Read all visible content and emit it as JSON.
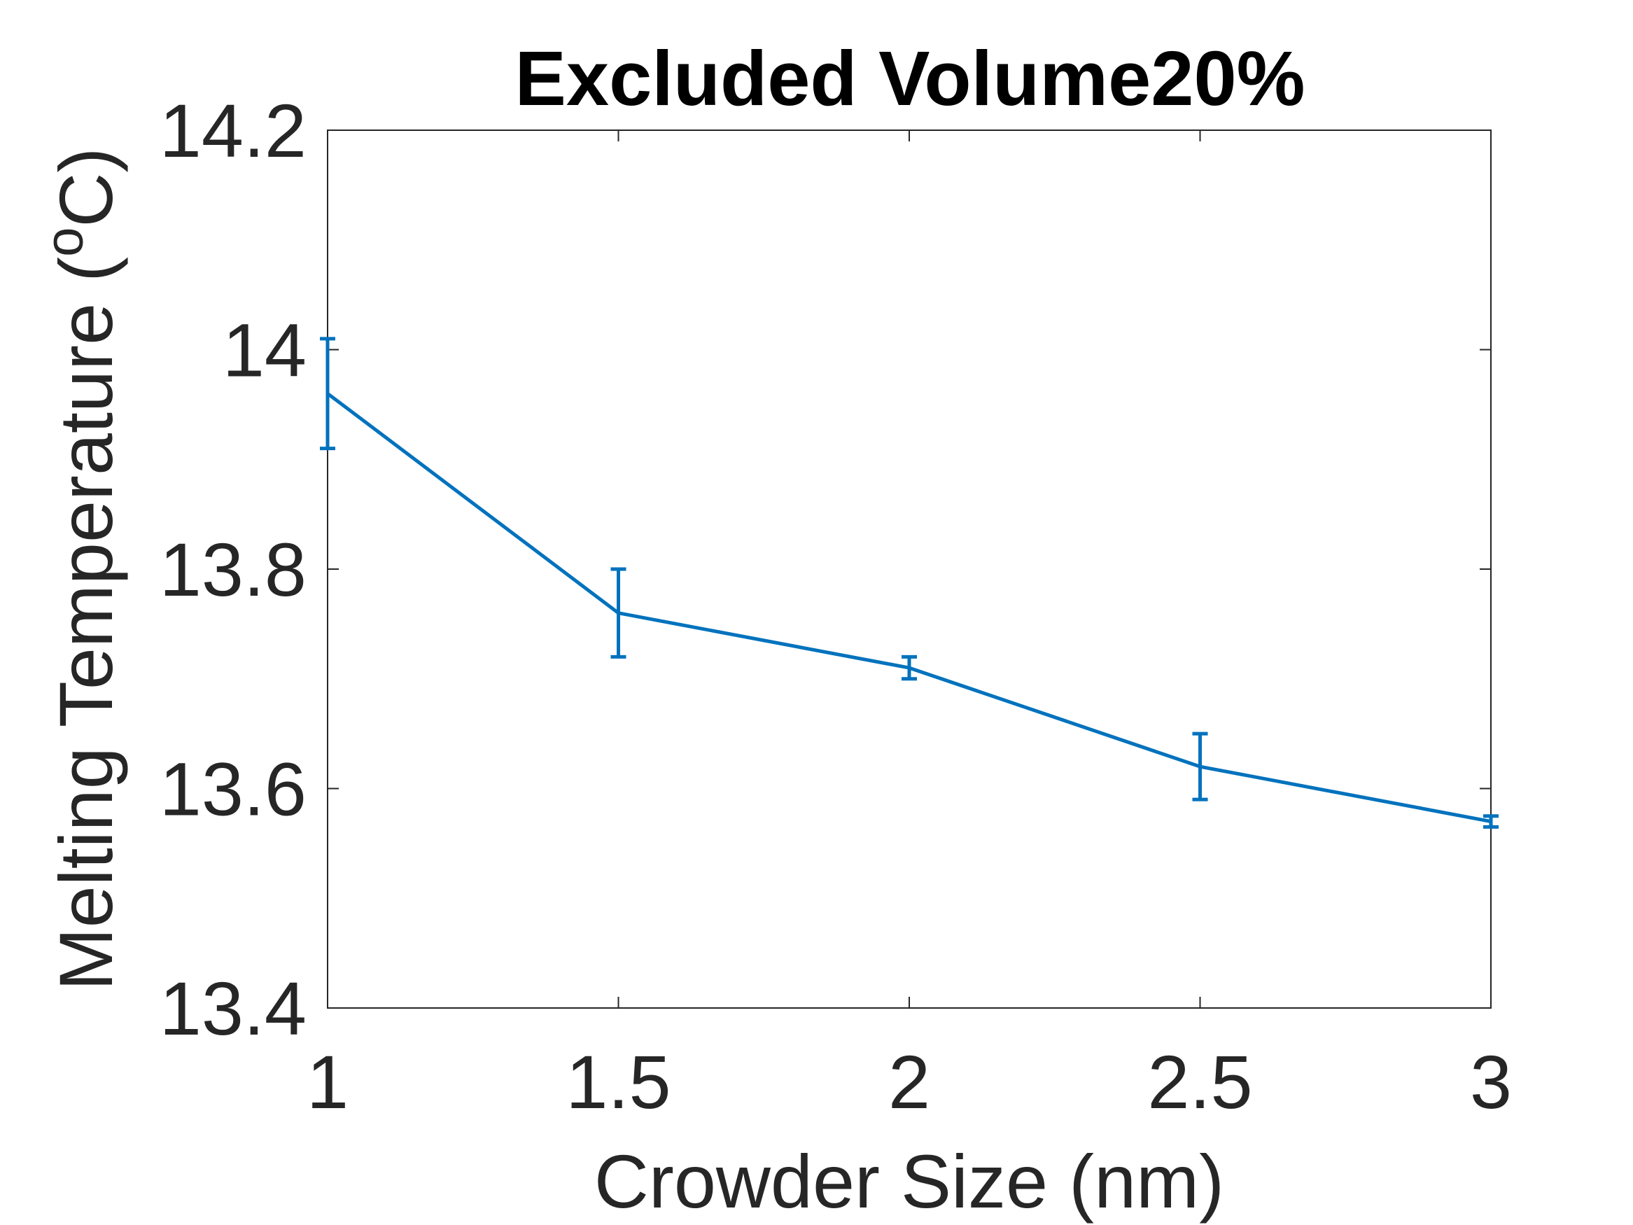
{
  "chart_data": {
    "type": "line",
    "title": "Excluded Volume20%",
    "xlabel": "Crowder Size (nm)",
    "ylabel": {
      "prefix": "Melting Temperature (",
      "superscript": "o",
      "suffix": "C)"
    },
    "xlim": [
      1,
      3
    ],
    "ylim": [
      13.4,
      14.2
    ],
    "xticks": [
      1,
      1.5,
      2,
      2.5,
      3
    ],
    "xtick_labels": [
      "1",
      "1.5",
      "2",
      "2.5",
      "3"
    ],
    "yticks": [
      13.4,
      13.6,
      13.8,
      14,
      14.2
    ],
    "ytick_labels": [
      "13.4",
      "13.6",
      "13.8",
      "14",
      "14.2"
    ],
    "grid": false,
    "series": [
      {
        "color": "#0072bd",
        "x": [
          1,
          1.5,
          2,
          2.5,
          3
        ],
        "y": [
          13.96,
          13.76,
          13.71,
          13.62,
          13.57
        ],
        "error": [
          0.05,
          0.04,
          0.01,
          0.03,
          0.005
        ]
      }
    ]
  }
}
